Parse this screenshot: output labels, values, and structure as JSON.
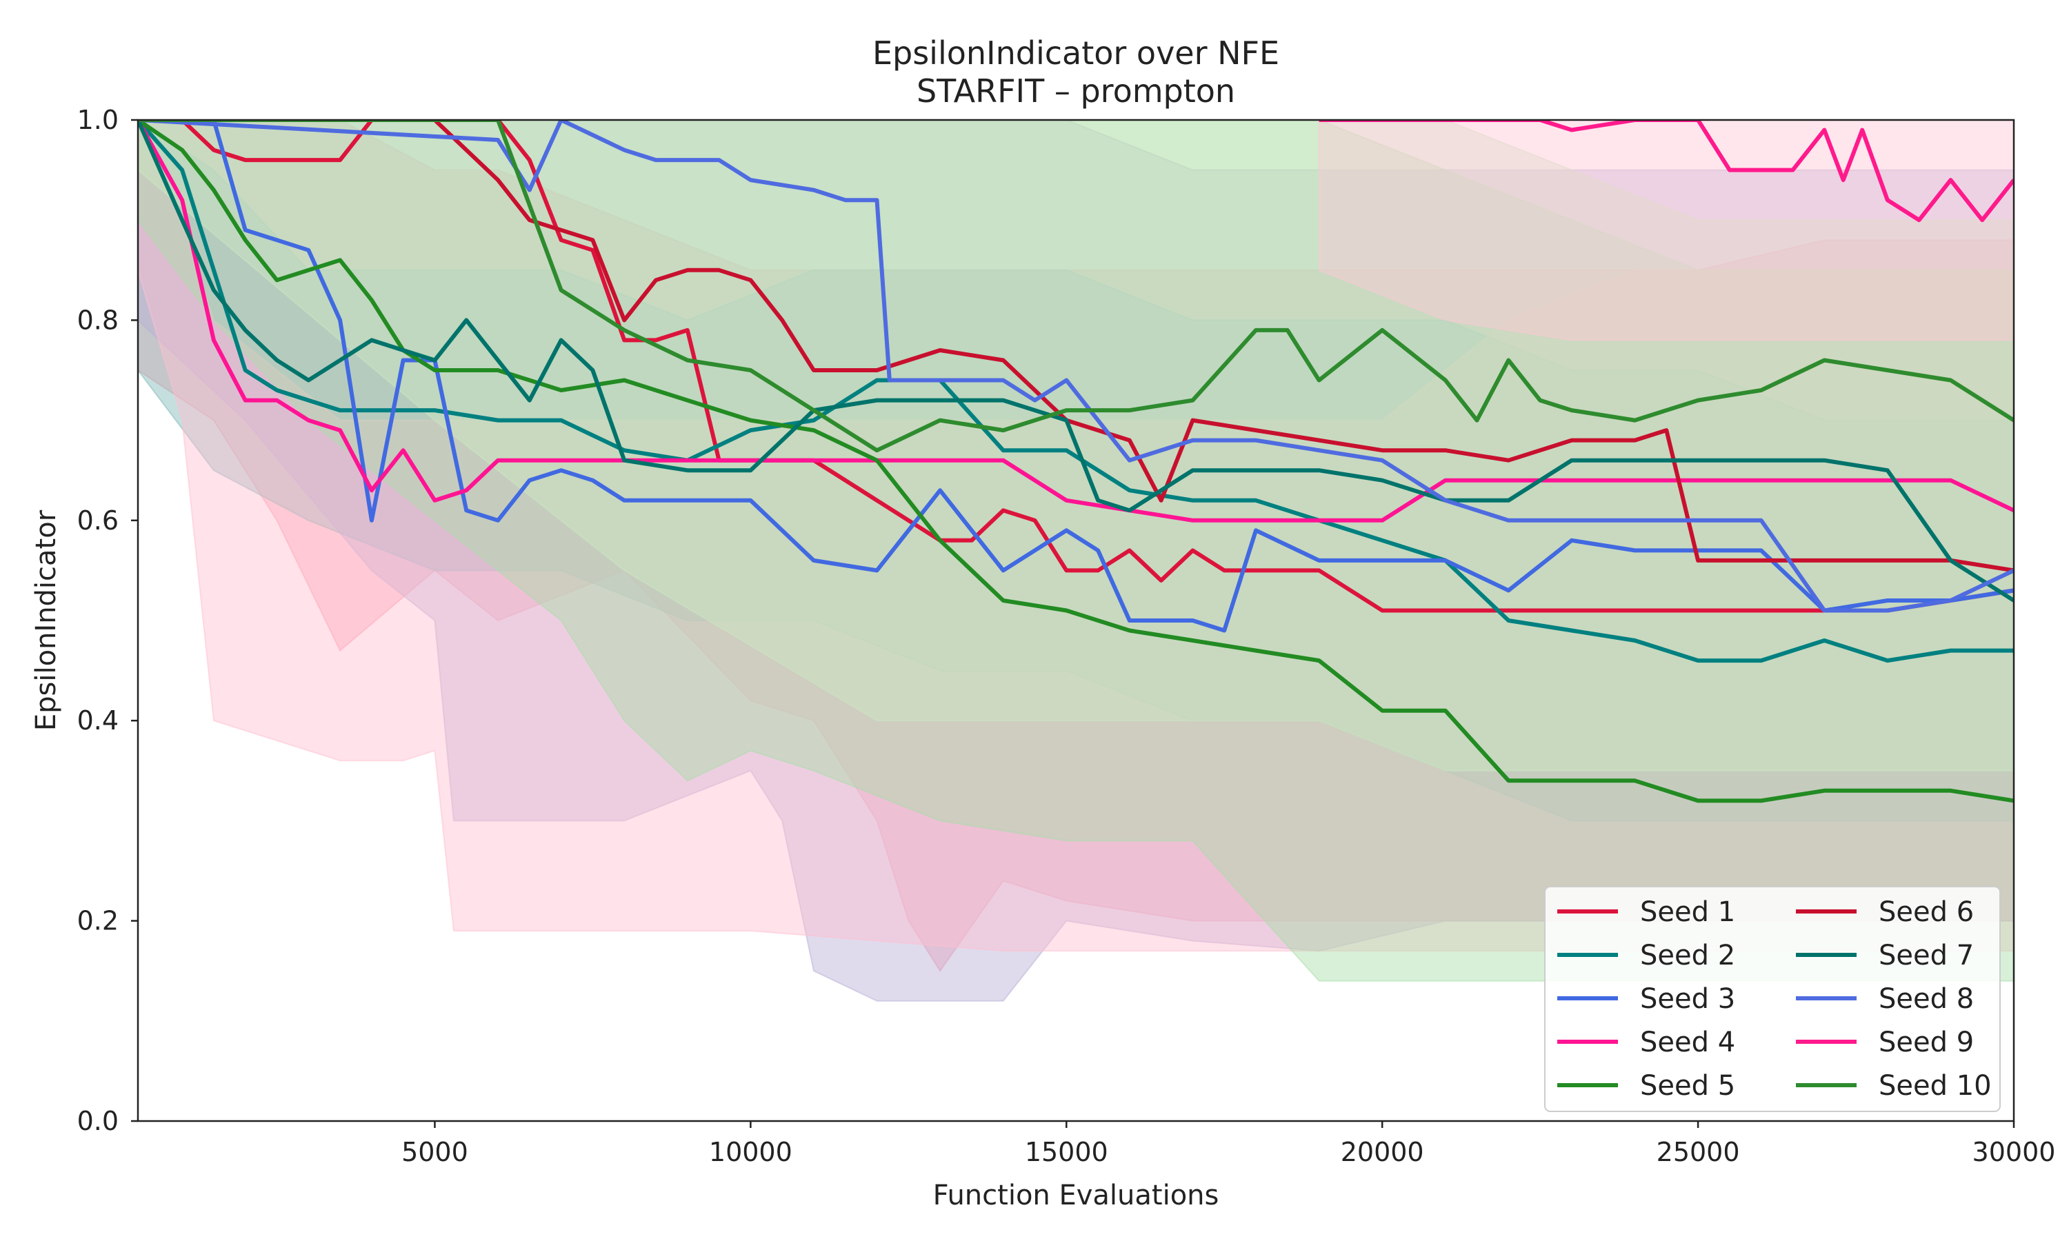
{
  "chart_data": {
    "type": "line",
    "title": "EpsilonIndicator over NFE",
    "subtitle": "STARFIT – prompton",
    "xlabel": "Function Evaluations",
    "ylabel": "EpsilonIndicator",
    "xlim": [
      300,
      30000
    ],
    "ylim": [
      0,
      1.0
    ],
    "xticks": [
      5000,
      10000,
      15000,
      20000,
      25000,
      30000
    ],
    "xtick_labels": [
      "5000",
      "10000",
      "15000",
      "20000",
      "25000",
      "30000"
    ],
    "yticks": [
      0,
      0.2,
      0.4,
      0.6,
      0.8,
      1.0
    ],
    "ytick_labels": [
      "0.0",
      "0.2",
      "0.4",
      "0.6",
      "0.8",
      "1.0"
    ],
    "grid": false,
    "legend_position": "bottom-right",
    "legend_columns": 2,
    "series": [
      {
        "name": "Seed 1",
        "color": "#DC143C",
        "x": [
          300,
          1000,
          1500,
          2000,
          2500,
          3000,
          3500,
          4000,
          4500,
          5000,
          5500,
          6000,
          6500,
          7000,
          7500,
          8000,
          8500,
          9000,
          9500,
          10000,
          10500,
          11000,
          11500,
          12000,
          12500,
          13000,
          13500,
          14000,
          14500,
          15000,
          15500,
          16000,
          16500,
          17000,
          17500,
          18000,
          18500,
          19000,
          20000,
          22000,
          24000,
          26000,
          28000,
          30000
        ],
        "y": [
          1.0,
          1.0,
          0.97,
          0.96,
          0.96,
          0.96,
          0.96,
          1.0,
          1.0,
          1.0,
          1.0,
          1.0,
          0.96,
          0.88,
          0.87,
          0.78,
          0.78,
          0.79,
          0.66,
          0.66,
          0.66,
          0.66,
          0.64,
          0.62,
          0.6,
          0.58,
          0.58,
          0.61,
          0.6,
          0.55,
          0.55,
          0.57,
          0.54,
          0.57,
          0.55,
          0.55,
          0.55,
          0.55,
          0.51,
          0.51,
          0.51,
          0.51,
          0.51,
          0.53
        ]
      },
      {
        "name": "Seed 2",
        "color": "#008080",
        "x": [
          300,
          1000,
          1500,
          2000,
          2500,
          3000,
          3500,
          4000,
          5000,
          6000,
          7000,
          8000,
          9000,
          10000,
          11000,
          12000,
          13000,
          14000,
          15000,
          16000,
          17000,
          18000,
          19000,
          20000,
          21000,
          22000,
          23000,
          24000,
          25000,
          26000,
          27000,
          28000,
          29000,
          30000
        ],
        "y": [
          1.0,
          0.95,
          0.85,
          0.75,
          0.73,
          0.72,
          0.71,
          0.71,
          0.71,
          0.7,
          0.7,
          0.67,
          0.66,
          0.69,
          0.7,
          0.74,
          0.74,
          0.67,
          0.67,
          0.63,
          0.62,
          0.62,
          0.6,
          0.58,
          0.56,
          0.5,
          0.49,
          0.48,
          0.46,
          0.46,
          0.48,
          0.46,
          0.47,
          0.47
        ]
      },
      {
        "name": "Seed 3",
        "color": "#4169E1",
        "x": [
          300,
          1000,
          1500,
          2000,
          2500,
          3000,
          3500,
          4000,
          4500,
          5000,
          5500,
          6000,
          6500,
          7000,
          7500,
          8000,
          9000,
          10000,
          11000,
          12000,
          13000,
          14000,
          15000,
          15500,
          16000,
          17000,
          17500,
          18000,
          19000,
          20000,
          21000,
          22000,
          23000,
          24000,
          25000,
          26000,
          27000,
          28000,
          29000,
          30000
        ],
        "y": [
          1.0,
          1.0,
          1.0,
          0.89,
          0.88,
          0.87,
          0.8,
          0.6,
          0.76,
          0.76,
          0.61,
          0.6,
          0.64,
          0.65,
          0.64,
          0.62,
          0.62,
          0.62,
          0.56,
          0.55,
          0.63,
          0.55,
          0.59,
          0.57,
          0.5,
          0.5,
          0.49,
          0.59,
          0.56,
          0.56,
          0.56,
          0.53,
          0.58,
          0.57,
          0.57,
          0.57,
          0.51,
          0.52,
          0.52,
          0.53
        ]
      },
      {
        "name": "Seed 4",
        "color": "#FF1493",
        "x": [
          300,
          1000,
          1500,
          2000,
          2500,
          3000,
          3500,
          4000,
          4500,
          5000,
          5500,
          6000,
          7000,
          8000,
          9000,
          10000,
          11000,
          12000,
          13000,
          14000,
          15000,
          16000,
          17000,
          18000,
          19000,
          20000,
          21000,
          22000,
          23000,
          24000,
          25000,
          26000,
          27000,
          28000,
          29000,
          30000
        ],
        "y": [
          1.0,
          0.92,
          0.78,
          0.72,
          0.72,
          0.7,
          0.69,
          0.63,
          0.67,
          0.62,
          0.63,
          0.66,
          0.66,
          0.66,
          0.66,
          0.66,
          0.66,
          0.66,
          0.66,
          0.66,
          0.62,
          0.61,
          0.6,
          0.6,
          0.6,
          0.6,
          0.64,
          0.64,
          0.64,
          0.64,
          0.64,
          0.64,
          0.64,
          0.64,
          0.64,
          0.61
        ]
      },
      {
        "name": "Seed 5",
        "color": "#228B22",
        "x": [
          300,
          1000,
          1500,
          2000,
          2500,
          3000,
          3500,
          4000,
          4500,
          5000,
          5500,
          6000,
          7000,
          8000,
          9000,
          10000,
          11000,
          12000,
          13000,
          14000,
          15000,
          16000,
          17000,
          18000,
          19000,
          20000,
          21000,
          22000,
          23000,
          24000,
          25000,
          26000,
          27000,
          28000,
          29000,
          30000
        ],
        "y": [
          1.0,
          0.97,
          0.93,
          0.88,
          0.84,
          0.85,
          0.86,
          0.82,
          0.77,
          0.75,
          0.75,
          0.75,
          0.73,
          0.74,
          0.72,
          0.7,
          0.69,
          0.66,
          0.58,
          0.52,
          0.51,
          0.49,
          0.48,
          0.47,
          0.46,
          0.41,
          0.41,
          0.34,
          0.34,
          0.34,
          0.32,
          0.32,
          0.33,
          0.33,
          0.33,
          0.32
        ]
      },
      {
        "name": "Seed 6",
        "color": "#C8102E",
        "x": [
          300,
          2000,
          3000,
          4000,
          5000,
          6000,
          6500,
          7000,
          7500,
          8000,
          8500,
          9000,
          9500,
          10000,
          10500,
          11000,
          11500,
          12000,
          13000,
          14000,
          15000,
          16000,
          16500,
          17000,
          18000,
          19000,
          20000,
          21000,
          22000,
          23000,
          24000,
          24500,
          25000,
          26000,
          27000,
          28000,
          29000,
          30000
        ],
        "y": [
          1.0,
          1.0,
          1.0,
          1.0,
          1.0,
          0.94,
          0.9,
          0.89,
          0.88,
          0.8,
          0.84,
          0.85,
          0.85,
          0.84,
          0.8,
          0.75,
          0.75,
          0.75,
          0.77,
          0.76,
          0.7,
          0.68,
          0.62,
          0.7,
          0.69,
          0.68,
          0.67,
          0.67,
          0.66,
          0.68,
          0.68,
          0.69,
          0.56,
          0.56,
          0.56,
          0.56,
          0.56,
          0.55
        ]
      },
      {
        "name": "Seed 7",
        "color": "#00736B",
        "x": [
          300,
          1000,
          1500,
          2000,
          2500,
          3000,
          3500,
          4000,
          4500,
          5000,
          5500,
          6000,
          6500,
          7000,
          7500,
          8000,
          9000,
          10000,
          11000,
          12000,
          13000,
          14000,
          15000,
          15500,
          16000,
          17000,
          18000,
          19000,
          20000,
          21000,
          22000,
          23000,
          24000,
          25000,
          26000,
          27000,
          28000,
          29000,
          30000
        ],
        "y": [
          1.0,
          0.9,
          0.83,
          0.79,
          0.76,
          0.74,
          0.76,
          0.78,
          0.77,
          0.76,
          0.8,
          0.76,
          0.72,
          0.78,
          0.75,
          0.66,
          0.65,
          0.65,
          0.71,
          0.72,
          0.72,
          0.72,
          0.7,
          0.62,
          0.61,
          0.65,
          0.65,
          0.65,
          0.64,
          0.62,
          0.62,
          0.66,
          0.66,
          0.66,
          0.66,
          0.66,
          0.65,
          0.56,
          0.52
        ]
      },
      {
        "name": "Seed 8",
        "color": "#4F6BE0",
        "x": [
          300,
          6000,
          6500,
          7000,
          8000,
          8500,
          9000,
          9500,
          10000,
          11000,
          11500,
          12000,
          12200,
          13000,
          14000,
          14500,
          15000,
          15500,
          16000,
          17000,
          18000,
          19000,
          20000,
          21000,
          22000,
          23000,
          24000,
          25000,
          26000,
          27000,
          28000,
          29000,
          30000
        ],
        "y": [
          1.0,
          0.98,
          0.93,
          1.0,
          0.97,
          0.96,
          0.96,
          0.96,
          0.94,
          0.93,
          0.92,
          0.92,
          0.74,
          0.74,
          0.74,
          0.72,
          0.74,
          0.7,
          0.66,
          0.68,
          0.68,
          0.67,
          0.66,
          0.62,
          0.6,
          0.6,
          0.6,
          0.6,
          0.6,
          0.51,
          0.51,
          0.52,
          0.55
        ]
      },
      {
        "name": "Seed 9",
        "color": "#FF1A8C",
        "x": [
          19000,
          20000,
          21000,
          22000,
          22500,
          23000,
          24000,
          25000,
          25500,
          26000,
          26500,
          27000,
          27300,
          27600,
          28000,
          28500,
          29000,
          29500,
          30000
        ],
        "y": [
          1.0,
          1.0,
          1.0,
          1.0,
          1.0,
          0.99,
          1.0,
          1.0,
          0.95,
          0.95,
          0.95,
          0.99,
          0.94,
          0.99,
          0.92,
          0.9,
          0.94,
          0.9,
          0.94
        ]
      },
      {
        "name": "Seed 10",
        "color": "#2E8B2E",
        "x": [
          300,
          1000,
          2000,
          3000,
          4000,
          5000,
          6000,
          7000,
          8000,
          9000,
          10000,
          11000,
          12000,
          13000,
          14000,
          15000,
          16000,
          17000,
          18000,
          18500,
          19000,
          20000,
          21000,
          21500,
          22000,
          22500,
          23000,
          24000,
          25000,
          26000,
          27000,
          28000,
          29000,
          30000
        ],
        "y": [
          1.0,
          1.0,
          1.0,
          1.0,
          1.0,
          1.0,
          1.0,
          0.83,
          0.79,
          0.76,
          0.75,
          0.71,
          0.67,
          0.7,
          0.69,
          0.71,
          0.71,
          0.72,
          0.79,
          0.79,
          0.74,
          0.79,
          0.74,
          0.7,
          0.76,
          0.72,
          0.71,
          0.7,
          0.72,
          0.73,
          0.76,
          0.75,
          0.74,
          0.7
        ]
      }
    ],
    "bands": [
      {
        "series": "Seed 1",
        "color": "#FF9AAA",
        "x": [
          300,
          1500,
          2500,
          3500,
          5000,
          6000,
          8000,
          10000,
          11000,
          12000,
          12500,
          13000,
          14000,
          15000,
          17000,
          20000,
          22000,
          25000,
          27000,
          30000
        ],
        "lower": [
          0.75,
          0.7,
          0.6,
          0.47,
          0.55,
          0.5,
          0.55,
          0.42,
          0.4,
          0.3,
          0.2,
          0.15,
          0.24,
          0.22,
          0.2,
          0.2,
          0.2,
          0.2,
          0.2,
          0.2
        ],
        "upper": [
          1.0,
          1.0,
          1.0,
          1.0,
          0.95,
          0.95,
          0.9,
          0.85,
          0.85,
          0.85,
          0.85,
          0.85,
          0.85,
          0.85,
          0.85,
          0.85,
          0.85,
          0.85,
          0.88,
          0.88
        ]
      },
      {
        "series": "Seed 2",
        "color": "#7FB8B8",
        "x": [
          300,
          1500,
          3000,
          5000,
          7000,
          9000,
          11000,
          13000,
          15000,
          17000,
          19000,
          21000,
          23000,
          25000,
          27000,
          30000
        ],
        "lower": [
          0.75,
          0.65,
          0.6,
          0.55,
          0.55,
          0.5,
          0.5,
          0.45,
          0.45,
          0.4,
          0.4,
          0.35,
          0.3,
          0.3,
          0.3,
          0.3
        ],
        "upper": [
          1.0,
          0.95,
          0.85,
          0.85,
          0.85,
          0.8,
          0.85,
          0.85,
          0.85,
          0.8,
          0.8,
          0.8,
          0.75,
          0.75,
          0.7,
          0.7
        ]
      },
      {
        "series": "Seed 3",
        "color": "#B7B0D6",
        "x": [
          300,
          2000,
          4000,
          5000,
          5300,
          8000,
          10000,
          10500,
          11000,
          12000,
          13000,
          14000,
          15000,
          17000,
          19000,
          21000,
          23000,
          25000,
          27000,
          30000
        ],
        "lower": [
          0.8,
          0.7,
          0.55,
          0.5,
          0.3,
          0.3,
          0.35,
          0.3,
          0.15,
          0.12,
          0.12,
          0.12,
          0.2,
          0.18,
          0.17,
          0.2,
          0.2,
          0.2,
          0.2,
          0.2
        ],
        "upper": [
          1.0,
          1.0,
          1.0,
          1.0,
          1.0,
          1.0,
          1.0,
          1.0,
          1.0,
          1.0,
          1.0,
          1.0,
          1.0,
          0.95,
          0.95,
          0.95,
          0.95,
          0.95,
          0.95,
          0.95
        ]
      },
      {
        "series": "Seed 4",
        "color": "#FFBFD0",
        "x": [
          300,
          1000,
          1500,
          2500,
          3500,
          4500,
          5000,
          5300,
          8000,
          10000,
          12000,
          14000,
          16000,
          18000,
          20000,
          22000,
          24000,
          26000,
          28000,
          30000
        ],
        "lower": [
          0.85,
          0.7,
          0.4,
          0.38,
          0.36,
          0.36,
          0.37,
          0.19,
          0.19,
          0.19,
          0.18,
          0.17,
          0.17,
          0.17,
          0.17,
          0.17,
          0.17,
          0.17,
          0.17,
          0.17
        ],
        "upper": [
          1.0,
          0.9,
          0.8,
          0.75,
          0.7,
          0.7,
          0.7,
          0.7,
          0.7,
          0.7,
          0.7,
          0.7,
          0.7,
          0.7,
          0.7,
          0.8,
          0.85,
          0.85,
          0.85,
          0.85
        ]
      },
      {
        "series": "Seed 5",
        "color": "#A8DDA8",
        "x": [
          300,
          1500,
          3000,
          5000,
          7000,
          8000,
          9000,
          10000,
          11000,
          13000,
          15000,
          17000,
          19000,
          21000,
          23000,
          25000,
          27000,
          30000
        ],
        "lower": [
          0.9,
          0.8,
          0.7,
          0.6,
          0.5,
          0.4,
          0.34,
          0.37,
          0.35,
          0.3,
          0.28,
          0.28,
          0.14,
          0.14,
          0.14,
          0.14,
          0.14,
          0.14
        ],
        "upper": [
          1.0,
          1.0,
          1.0,
          1.0,
          1.0,
          1.0,
          1.0,
          1.0,
          1.0,
          1.0,
          1.0,
          1.0,
          1.0,
          0.95,
          0.9,
          0.85,
          0.85,
          0.85
        ]
      },
      {
        "series": "Seed 8",
        "color": "#CBE8C2",
        "x": [
          300,
          5000,
          8000,
          12000,
          14000,
          16000,
          18000,
          19000,
          21000,
          23000,
          25000,
          27000,
          30000
        ],
        "lower": [
          0.95,
          0.7,
          0.55,
          0.4,
          0.4,
          0.4,
          0.4,
          0.4,
          0.35,
          0.35,
          0.35,
          0.35,
          0.35
        ],
        "upper": [
          1.0,
          1.0,
          1.0,
          1.0,
          1.0,
          1.0,
          1.0,
          1.0,
          1.0,
          0.95,
          0.9,
          0.9,
          0.9
        ]
      },
      {
        "series": "Seed 9",
        "color": "#FFC8D6",
        "x": [
          19000,
          21000,
          23000,
          25000,
          27000,
          30000
        ],
        "lower": [
          0.85,
          0.8,
          0.78,
          0.78,
          0.78,
          0.78
        ],
        "upper": [
          1.0,
          1.0,
          1.0,
          1.0,
          1.0,
          1.0
        ]
      }
    ]
  }
}
